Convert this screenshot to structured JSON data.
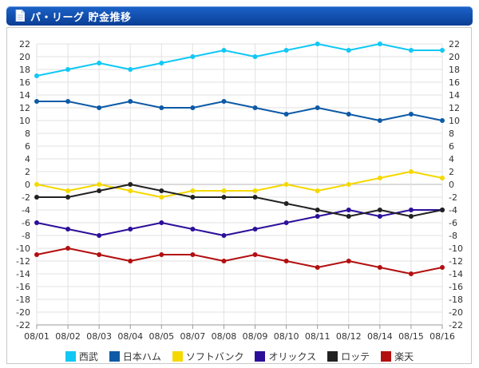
{
  "header": {
    "title": "パ・リーグ  貯金推移"
  },
  "icons": {
    "header_icon": "document-icon"
  },
  "chart_data": {
    "type": "line",
    "title": "パ・リーグ 貯金推移",
    "categories": [
      "08/01",
      "08/02",
      "08/03",
      "08/04",
      "08/05",
      "08/07",
      "08/08",
      "08/09",
      "08/10",
      "08/11",
      "08/12",
      "08/14",
      "08/15",
      "08/16"
    ],
    "ylim": [
      -22,
      22
    ],
    "yticks": [
      22,
      20,
      18,
      16,
      14,
      12,
      10,
      8,
      6,
      4,
      2,
      0,
      -2,
      -4,
      -6,
      -8,
      -10,
      -12,
      -14,
      -16,
      -18,
      -20,
      -22
    ],
    "grid": true,
    "legend_position": "bottom",
    "series": [
      {
        "name": "西武",
        "color": "#11c8f5",
        "values": [
          17,
          18,
          19,
          18,
          19,
          20,
          21,
          20,
          21,
          22,
          21,
          22,
          21,
          21
        ]
      },
      {
        "name": "日本ハム",
        "color": "#0d5aa7",
        "values": [
          13,
          13,
          12,
          13,
          12,
          12,
          13,
          12,
          11,
          12,
          11,
          10,
          11,
          10
        ]
      },
      {
        "name": "ソフトバンク",
        "color": "#f5d800",
        "values": [
          0,
          -1,
          0,
          -1,
          -2,
          -1,
          -1,
          -1,
          0,
          -1,
          0,
          1,
          2,
          1
        ]
      },
      {
        "name": "オリックス",
        "color": "#2c0f99",
        "values": [
          -6,
          -7,
          -8,
          -7,
          -6,
          -7,
          -8,
          -7,
          -6,
          -5,
          -4,
          -5,
          -4,
          -4
        ]
      },
      {
        "name": "ロッテ",
        "color": "#222222",
        "values": [
          -2,
          -2,
          -1,
          0,
          -1,
          -2,
          -2,
          -2,
          -3,
          -4,
          -5,
          -4,
          -5,
          -4
        ]
      },
      {
        "name": "楽天",
        "color": "#b30f0f",
        "values": [
          -11,
          -10,
          -11,
          -12,
          -11,
          -11,
          -12,
          -11,
          -12,
          -13,
          -12,
          -13,
          -14,
          -13
        ]
      }
    ]
  }
}
